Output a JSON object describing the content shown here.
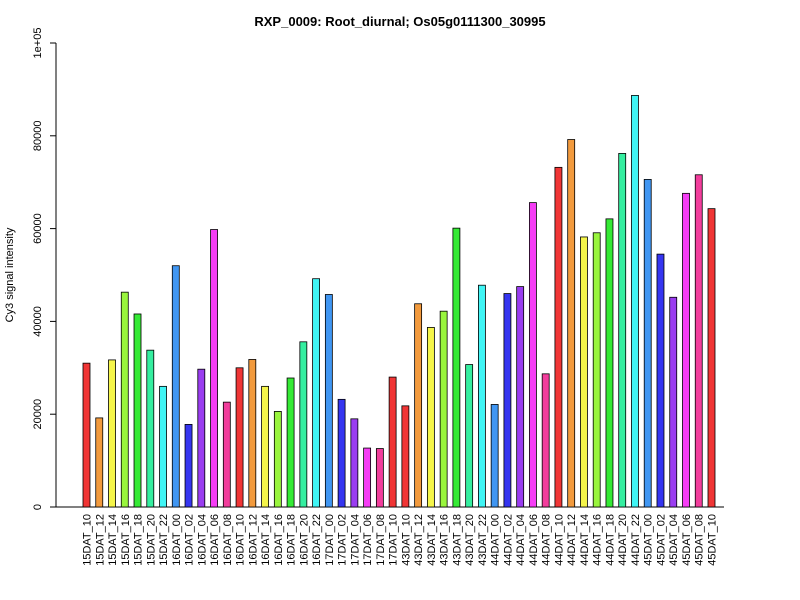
{
  "chart_data": {
    "type": "bar",
    "title": "RXP_0009: Root_diurnal; Os05g0111300_30995",
    "xlabel": "",
    "ylabel": "Cy3 signal intensity",
    "ylim": [
      0,
      100000
    ],
    "yticks": [
      0,
      20000,
      40000,
      60000,
      80000,
      100000
    ],
    "ytick_labels": [
      "0",
      "20000",
      "40000",
      "60000",
      "80000",
      "1e+05"
    ],
    "categories": [
      "15DAT_10",
      "15DAT_12",
      "15DAT_14",
      "15DAT_16",
      "15DAT_18",
      "15DAT_20",
      "15DAT_22",
      "16DAT_00",
      "16DAT_02",
      "16DAT_04",
      "16DAT_06",
      "16DAT_08",
      "16DAT_10",
      "16DAT_12",
      "16DAT_14",
      "16DAT_16",
      "16DAT_18",
      "16DAT_20",
      "16DAT_22",
      "17DAT_00",
      "17DAT_02",
      "17DAT_04",
      "17DAT_06",
      "17DAT_08",
      "17DAT_10",
      "43DAT_10",
      "43DAT_12",
      "43DAT_14",
      "43DAT_16",
      "43DAT_18",
      "43DAT_20",
      "43DAT_22",
      "44DAT_00",
      "44DAT_02",
      "44DAT_04",
      "44DAT_06",
      "44DAT_08",
      "44DAT_10",
      "44DAT_12",
      "44DAT_14",
      "44DAT_16",
      "44DAT_18",
      "44DAT_20",
      "44DAT_22",
      "45DAT_00",
      "45DAT_02",
      "45DAT_04",
      "45DAT_06",
      "45DAT_08",
      "45DAT_10"
    ],
    "values": [
      31000,
      19200,
      31700,
      46300,
      41600,
      33800,
      26000,
      52000,
      17800,
      29700,
      59800,
      22600,
      30000,
      31800,
      26000,
      20600,
      27800,
      35600,
      49200,
      45800,
      23200,
      19000,
      12700,
      12600,
      28000,
      21800,
      43800,
      38700,
      42200,
      60100,
      30700,
      47800,
      22100,
      46000,
      47500,
      65600,
      28700,
      73200,
      79200,
      58200,
      59100,
      62100,
      76200,
      88700,
      70600,
      54500,
      45200,
      67600,
      71600,
      64300
    ],
    "colors": [
      "#f03535",
      "#f29a3d",
      "#f5f54a",
      "#99f53d",
      "#35ea35",
      "#35eea0",
      "#40f5f5",
      "#4096f2",
      "#3535f0",
      "#9a3df0",
      "#f53df5",
      "#f23d9c",
      "#f03535",
      "#f29a3d",
      "#f5f54a",
      "#99f53d",
      "#35ea35",
      "#35eea0",
      "#40f5f5",
      "#4096f2",
      "#3535f0",
      "#9a3df0",
      "#f53df5",
      "#f23d9c",
      "#f03535",
      "#f03535",
      "#f29a3d",
      "#f5f54a",
      "#99f53d",
      "#35ea35",
      "#35eea0",
      "#40f5f5",
      "#4096f2",
      "#3535f0",
      "#9a3df0",
      "#f53df5",
      "#f23d9c",
      "#f03535",
      "#f29a3d",
      "#f5f54a",
      "#99f53d",
      "#35ea35",
      "#35eea0",
      "#40f5f5",
      "#4096f2",
      "#3535f0",
      "#9a3df0",
      "#f53df5",
      "#f23d9c",
      "#f03535"
    ]
  }
}
